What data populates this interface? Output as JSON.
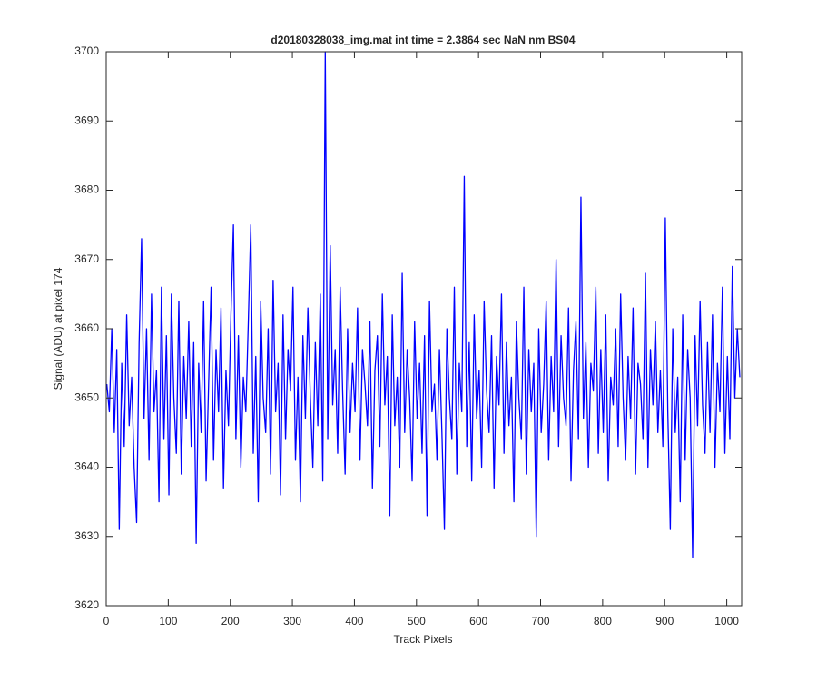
{
  "chart_data": {
    "type": "line",
    "title": "d20180328038_img.mat int time = 2.3864 sec  NaN nm BS04",
    "x_label": "Track Pixels",
    "y_label": "Signal (ADU) at pixel 174",
    "color": "#0000ff",
    "xlim": [
      0,
      1024
    ],
    "ylim": [
      3620,
      3700
    ],
    "xticks": [
      0,
      100,
      200,
      300,
      400,
      500,
      600,
      700,
      800,
      900,
      1000
    ],
    "yticks": [
      3620,
      3630,
      3640,
      3650,
      3660,
      3670,
      3680,
      3690,
      3700
    ],
    "x": [
      1,
      5,
      9,
      13,
      17,
      21,
      25,
      29,
      33,
      37,
      41,
      45,
      49,
      53,
      57,
      61,
      65,
      69,
      73,
      77,
      81,
      85,
      89,
      93,
      97,
      101,
      105,
      109,
      113,
      117,
      121,
      125,
      129,
      133,
      137,
      141,
      145,
      149,
      153,
      157,
      161,
      165,
      169,
      173,
      177,
      181,
      185,
      189,
      193,
      197,
      201,
      205,
      209,
      213,
      217,
      221,
      225,
      229,
      233,
      237,
      241,
      245,
      249,
      253,
      257,
      261,
      265,
      269,
      273,
      277,
      281,
      285,
      289,
      293,
      297,
      301,
      305,
      309,
      313,
      317,
      321,
      325,
      329,
      333,
      337,
      341,
      345,
      349,
      353,
      357,
      361,
      365,
      369,
      373,
      377,
      381,
      385,
      389,
      393,
      397,
      401,
      405,
      409,
      413,
      417,
      421,
      425,
      429,
      433,
      437,
      441,
      445,
      449,
      453,
      457,
      461,
      465,
      469,
      473,
      477,
      481,
      485,
      489,
      493,
      497,
      501,
      505,
      509,
      513,
      517,
      521,
      525,
      529,
      533,
      537,
      541,
      545,
      549,
      553,
      557,
      561,
      565,
      569,
      573,
      577,
      581,
      585,
      589,
      593,
      597,
      601,
      605,
      609,
      613,
      617,
      621,
      625,
      629,
      633,
      637,
      641,
      645,
      649,
      653,
      657,
      661,
      665,
      669,
      673,
      677,
      681,
      685,
      689,
      693,
      697,
      701,
      705,
      709,
      713,
      717,
      721,
      725,
      729,
      733,
      737,
      741,
      745,
      749,
      753,
      757,
      761,
      765,
      769,
      773,
      777,
      781,
      785,
      789,
      793,
      797,
      801,
      805,
      809,
      813,
      817,
      821,
      825,
      829,
      833,
      837,
      841,
      845,
      849,
      853,
      857,
      861,
      865,
      869,
      873,
      877,
      881,
      885,
      889,
      893,
      897,
      901,
      905,
      909,
      913,
      917,
      921,
      925,
      929,
      933,
      937,
      941,
      945,
      949,
      953,
      957,
      961,
      965,
      969,
      973,
      977,
      981,
      985,
      989,
      993,
      997,
      1001,
      1005,
      1009,
      1013,
      1017,
      1021
    ],
    "values": [
      3652,
      3648,
      3660,
      3645,
      3657,
      3631,
      3655,
      3643,
      3662,
      3646,
      3653,
      3640,
      3632,
      3658,
      3673,
      3647,
      3660,
      3641,
      3665,
      3648,
      3654,
      3635,
      3666,
      3644,
      3659,
      3636,
      3665,
      3650,
      3642,
      3664,
      3639,
      3656,
      3647,
      3661,
      3643,
      3658,
      3629,
      3655,
      3645,
      3664,
      3638,
      3652,
      3666,
      3641,
      3657,
      3648,
      3663,
      3637,
      3654,
      3646,
      3662,
      3675,
      3644,
      3659,
      3640,
      3653,
      3648,
      3661,
      3675,
      3642,
      3656,
      3635,
      3664,
      3650,
      3645,
      3660,
      3639,
      3667,
      3648,
      3655,
      3636,
      3662,
      3644,
      3657,
      3651,
      3666,
      3641,
      3653,
      3635,
      3659,
      3647,
      3663,
      3650,
      3640,
      3658,
      3646,
      3665,
      3638,
      3700,
      3644,
      3672,
      3649,
      3657,
      3642,
      3666,
      3651,
      3639,
      3660,
      3645,
      3655,
      3648,
      3663,
      3641,
      3657,
      3652,
      3646,
      3661,
      3637,
      3654,
      3659,
      3643,
      3665,
      3649,
      3656,
      3633,
      3662,
      3646,
      3653,
      3640,
      3668,
      3645,
      3657,
      3650,
      3638,
      3661,
      3647,
      3655,
      3642,
      3659,
      3633,
      3664,
      3648,
      3652,
      3641,
      3657,
      3645,
      3631,
      3660,
      3650,
      3644,
      3666,
      3639,
      3655,
      3648,
      3682,
      3643,
      3658,
      3638,
      3662,
      3647,
      3654,
      3640,
      3664,
      3651,
      3645,
      3659,
      3637,
      3656,
      3649,
      3665,
      3642,
      3658,
      3646,
      3653,
      3635,
      3661,
      3650,
      3644,
      3666,
      3639,
      3657,
      3648,
      3655,
      3630,
      3660,
      3645,
      3652,
      3664,
      3641,
      3656,
      3648,
      3670,
      3643,
      3659,
      3650,
      3646,
      3663,
      3638,
      3654,
      3661,
      3644,
      3679,
      3647,
      3658,
      3640,
      3655,
      3651,
      3666,
      3642,
      3657,
      3645,
      3662,
      3638,
      3653,
      3649,
      3660,
      3643,
      3665,
      3650,
      3641,
      3656,
      3647,
      3663,
      3639,
      3655,
      3652,
      3644,
      3668,
      3640,
      3657,
      3649,
      3661,
      3645,
      3654,
      3643,
      3676,
      3648,
      3631,
      3660,
      3645,
      3653,
      3635,
      3662,
      3641,
      3657,
      3650,
      3627,
      3659,
      3646,
      3664,
      3649,
      3642,
      3658,
      3645,
      3662,
      3640,
      3655,
      3648,
      3666,
      3642,
      3656,
      3644,
      3669,
      3650,
      3660,
      3653
    ]
  }
}
